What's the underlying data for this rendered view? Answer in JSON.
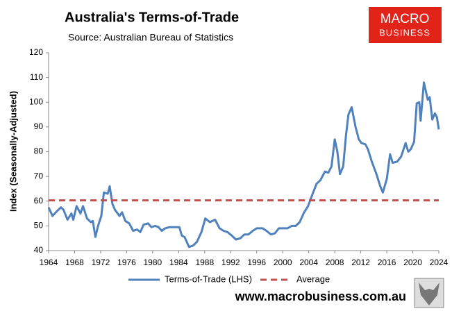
{
  "chart_data": {
    "type": "line",
    "title": "Australia's Terms-of-Trade",
    "subtitle": "Source: Australian Bureau of Statistics",
    "y_label": "Index (Seasonally-Adjusted)",
    "logo": [
      "MACRO",
      "BUSINESS"
    ],
    "website": "www.macrobusiness.com.au",
    "x": [
      1964,
      1964.6,
      1965.3,
      1965.9,
      1966.3,
      1966.9,
      1967.5,
      1967.8,
      1968.3,
      1968.9,
      1969.3,
      1969.9,
      1970.5,
      1970.8,
      1971.2,
      1971.6,
      1972.1,
      1972.5,
      1973.1,
      1973.4,
      1973.8,
      1974.2,
      1974.9,
      1975.3,
      1975.8,
      1976.4,
      1977,
      1977.6,
      1978.1,
      1978.6,
      1979.3,
      1979.8,
      1980.4,
      1980.9,
      1981.4,
      1981.9,
      1982.6,
      1983.2,
      1984.1,
      1984.5,
      1984.9,
      1985.6,
      1986.2,
      1986.8,
      1987.5,
      1988.1,
      1988.8,
      1989.6,
      1990.3,
      1990.9,
      1991.5,
      1992.2,
      1992.8,
      1993.5,
      1994.1,
      1994.7,
      1995.4,
      1996,
      1996.9,
      1997.5,
      1998.2,
      1998.8,
      1999.4,
      2000.1,
      2000.7,
      2001.4,
      2002,
      2002.6,
      2003.3,
      2003.9,
      2004.6,
      2005.2,
      2005.8,
      2006.5,
      2007,
      2007.5,
      2008,
      2008.4,
      2008.8,
      2009.3,
      2009.7,
      2010.1,
      2010.6,
      2011.2,
      2011.7,
      2012.1,
      2012.7,
      2013.1,
      2013.7,
      2014.4,
      2015,
      2015.4,
      2016,
      2016.5,
      2016.9,
      2017.6,
      2018.2,
      2018.9,
      2019.3,
      2019.7,
      2020.2,
      2020.6,
      2021,
      2021.2,
      2021.7,
      2022.3,
      2022.6,
      2023,
      2023.4,
      2023.7,
      2024
    ],
    "series": [
      {
        "name": "Terms-of-Trade (LHS)",
        "color": "#4f81bd",
        "values": [
          57.5,
          54,
          56,
          57.5,
          56.5,
          52.5,
          55,
          52.5,
          58,
          55,
          58,
          53,
          51.5,
          52,
          45.5,
          50,
          54,
          63.5,
          63,
          66,
          59,
          56.5,
          54,
          55.5,
          52,
          51,
          48,
          48.5,
          47.5,
          50.5,
          51,
          49.5,
          50,
          49.5,
          48,
          49,
          49.5,
          49.5,
          49.5,
          46,
          45.5,
          41.5,
          42,
          43.5,
          47.5,
          53,
          51.5,
          52.5,
          49,
          48,
          47.5,
          46,
          44.5,
          45,
          46.5,
          46.5,
          48,
          49,
          49,
          48,
          46.5,
          47,
          49,
          49,
          49,
          50,
          50,
          51.5,
          55.5,
          58,
          63,
          67,
          68.5,
          72,
          71.5,
          74,
          85,
          80,
          71,
          74,
          86,
          95,
          98,
          90,
          85,
          83.5,
          83,
          81,
          76,
          71,
          66,
          63.5,
          69,
          79,
          75.5,
          76,
          78,
          83.5,
          80,
          81,
          84,
          99.5,
          100,
          92.5,
          108,
          101,
          102,
          93,
          95.5,
          94,
          89
        ]
      },
      {
        "name": "Average",
        "color": "#c0504d",
        "reference": 60.3,
        "dashed": true
      }
    ],
    "xlim": [
      1964,
      2024
    ],
    "xticks": [
      1964,
      1968,
      1972,
      1976,
      1980,
      1984,
      1988,
      1992,
      1996,
      2000,
      2004,
      2008,
      2012,
      2016,
      2020,
      2024
    ],
    "ylim": [
      40,
      120
    ],
    "yticks": [
      40,
      50,
      60,
      70,
      80,
      90,
      100,
      110,
      120
    ],
    "grid": false
  }
}
